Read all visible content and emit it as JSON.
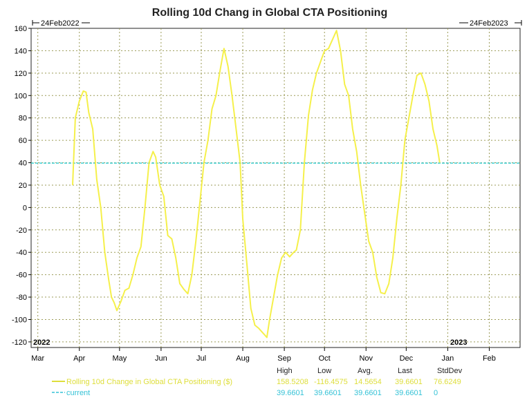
{
  "chart_data": {
    "type": "line",
    "title": "Rolling 10d Chang in Global CTA Positioning",
    "xlabel": "",
    "ylabel": "",
    "ylim": [
      -125,
      160
    ],
    "yticks": [
      160,
      140,
      120,
      100,
      80,
      60,
      40,
      20,
      0,
      -20,
      -40,
      -60,
      -80,
      -100,
      -120
    ],
    "grid": true,
    "legend_position": "bottom",
    "x_range_start": "24Feb2022",
    "x_range_end": "24Feb2023",
    "year_start_label": "2022",
    "year_end_label": "2023",
    "month_ticks": [
      {
        "label": "Mar",
        "day": 5
      },
      {
        "label": "Apr",
        "day": 36
      },
      {
        "label": "May",
        "day": 66
      },
      {
        "label": "Jun",
        "day": 97
      },
      {
        "label": "Jul",
        "day": 127
      },
      {
        "label": "Aug",
        "day": 158
      },
      {
        "label": "Sep",
        "day": 189
      },
      {
        "label": "Oct",
        "day": 219
      },
      {
        "label": "Nov",
        "day": 250
      },
      {
        "label": "Dec",
        "day": 280
      },
      {
        "label": "Jan",
        "day": 311
      },
      {
        "label": "Feb",
        "day": 342
      }
    ],
    "series": [
      {
        "name": "Rolling 10d Change in Global CTA Positioning ($)",
        "color": "#f5f04a",
        "points": [
          [
            31,
            20
          ],
          [
            33,
            80
          ],
          [
            36,
            95
          ],
          [
            39,
            104
          ],
          [
            41,
            103
          ],
          [
            43,
            85
          ],
          [
            46,
            70
          ],
          [
            49,
            25
          ],
          [
            52,
            0
          ],
          [
            55,
            -40
          ],
          [
            58,
            -65
          ],
          [
            60,
            -80
          ],
          [
            62,
            -85
          ],
          [
            64,
            -92
          ],
          [
            67,
            -84
          ],
          [
            70,
            -74
          ],
          [
            73,
            -72
          ],
          [
            76,
            -60
          ],
          [
            79,
            -45
          ],
          [
            82,
            -35
          ],
          [
            85,
            0
          ],
          [
            88,
            40
          ],
          [
            91,
            50
          ],
          [
            93,
            45
          ],
          [
            96,
            20
          ],
          [
            99,
            10
          ],
          [
            102,
            -25
          ],
          [
            105,
            -28
          ],
          [
            108,
            -45
          ],
          [
            111,
            -68
          ],
          [
            114,
            -73
          ],
          [
            117,
            -77
          ],
          [
            120,
            -60
          ],
          [
            123,
            -30
          ],
          [
            126,
            5
          ],
          [
            129,
            40
          ],
          [
            132,
            60
          ],
          [
            135,
            88
          ],
          [
            138,
            100
          ],
          [
            141,
            122
          ],
          [
            144,
            142
          ],
          [
            147,
            126
          ],
          [
            150,
            100
          ],
          [
            153,
            70
          ],
          [
            156,
            40
          ],
          [
            158,
            -10
          ],
          [
            161,
            -50
          ],
          [
            164,
            -90
          ],
          [
            167,
            -105
          ],
          [
            170,
            -108
          ],
          [
            173,
            -112
          ],
          [
            176,
            -116
          ],
          [
            178,
            -100
          ],
          [
            181,
            -80
          ],
          [
            184,
            -60
          ],
          [
            187,
            -45
          ],
          [
            190,
            -40
          ],
          [
            193,
            -44
          ],
          [
            196,
            -40
          ],
          [
            198,
            -38
          ],
          [
            201,
            -20
          ],
          [
            204,
            40
          ],
          [
            207,
            82
          ],
          [
            210,
            105
          ],
          [
            213,
            120
          ],
          [
            216,
            130
          ],
          [
            219,
            140
          ],
          [
            222,
            142
          ],
          [
            225,
            150
          ],
          [
            228,
            158
          ],
          [
            231,
            140
          ],
          [
            234,
            110
          ],
          [
            237,
            100
          ],
          [
            240,
            70
          ],
          [
            243,
            50
          ],
          [
            246,
            20
          ],
          [
            249,
            -5
          ],
          [
            252,
            -30
          ],
          [
            255,
            -40
          ],
          [
            258,
            -62
          ],
          [
            261,
            -76
          ],
          [
            264,
            -77
          ],
          [
            267,
            -68
          ],
          [
            270,
            -45
          ],
          [
            273,
            -10
          ],
          [
            276,
            20
          ],
          [
            279,
            60
          ],
          [
            282,
            80
          ],
          [
            285,
            100
          ],
          [
            288,
            118
          ],
          [
            291,
            120
          ],
          [
            294,
            110
          ],
          [
            297,
            95
          ],
          [
            300,
            70
          ],
          [
            303,
            55
          ],
          [
            305,
            40
          ]
        ]
      },
      {
        "name": "current",
        "color": "#3fd0d4",
        "dashed": true,
        "constant": 39.6601
      }
    ],
    "stats": {
      "headers": [
        "High",
        "Low",
        "Avg.",
        "Last",
        "StdDev"
      ],
      "rows": [
        {
          "label": "Rolling 10d Change in Global CTA Positioning ($)",
          "color": "#dede3a",
          "values": [
            "158.5208",
            "-116.4575",
            "14.5654",
            "39.6601",
            "76.6249"
          ]
        },
        {
          "label": "current",
          "color": "#34c2d6",
          "values": [
            "39.6601",
            "39.6601",
            "39.6601",
            "39.6601",
            "0"
          ]
        }
      ]
    }
  }
}
